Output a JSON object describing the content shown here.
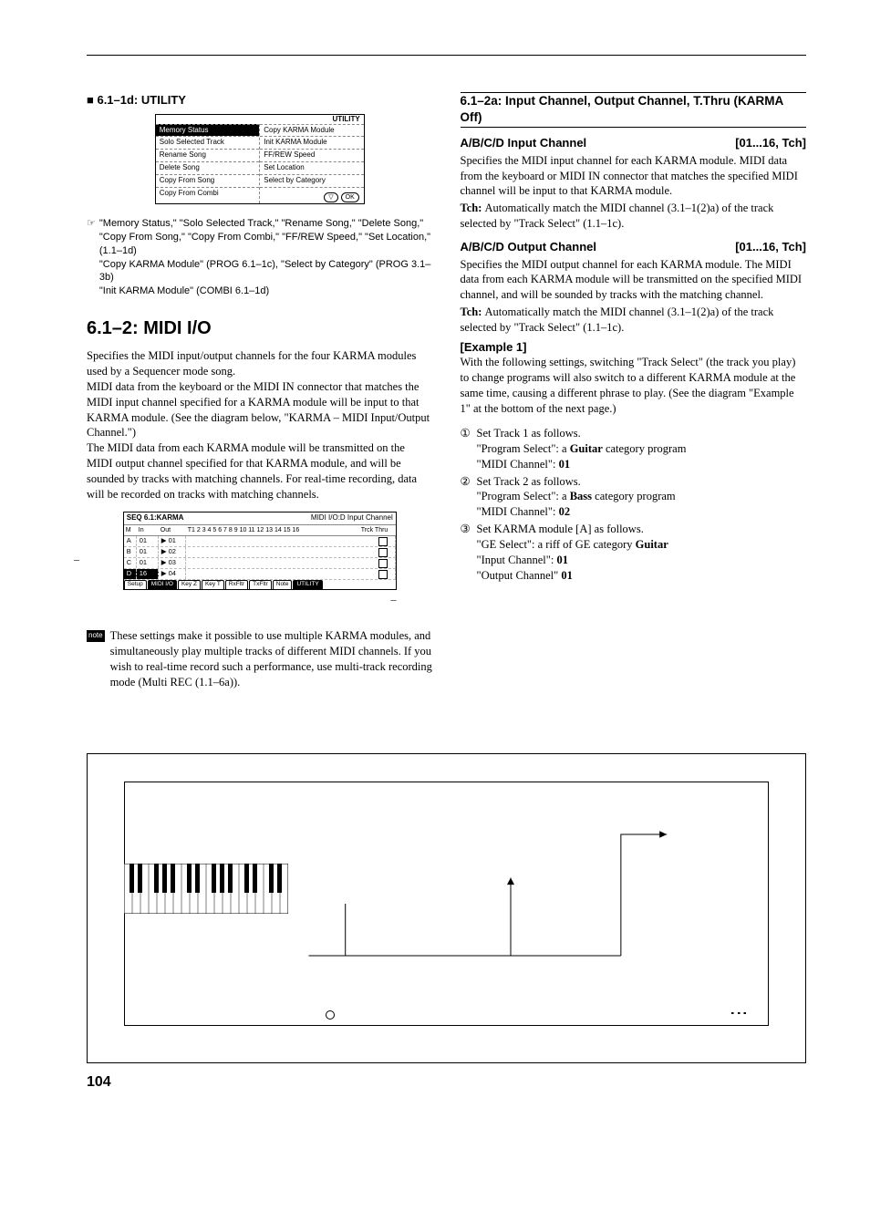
{
  "page_number": "104",
  "left": {
    "utility_title": "■ 6.1–1d: UTILITY",
    "utility": {
      "header": "UTILITY",
      "col1": [
        "Memory Status",
        "Solo Selected Track",
        "Rename Song",
        "Delete Song",
        "Copy From Song",
        "Copy From Combi"
      ],
      "col2": [
        "Copy KARMA Module",
        "Init KARMA Module",
        "FF/REW Speed",
        "Set Location",
        "Select by Category"
      ],
      "ok": "OK"
    },
    "pointer_sym": "☞",
    "pointer_lines": [
      "\"Memory Status,\" \"Solo Selected Track,\" \"Rename Song,\" \"Delete Song,\" \"Copy From Song,\" \"Copy From Combi,\" \"FF/REW Speed,\" \"Set Location,\" (1.1–1d)",
      "\"Copy KARMA Module\" (PROG 6.1–1c), \"Select by Category\" (PROG 3.1–3b)",
      "\"Init KARMA Module\" (COMBI 6.1–1d)"
    ],
    "h2": "6.1–2: MIDI I/O",
    "intro": "Specifies the MIDI input/output channels for the four KARMA modules used by a Sequencer mode song.\nMIDI data from the keyboard or the MIDI IN connector that matches the MIDI input channel specified for a KARMA module will be input to that KARMA module. (See the diagram below, \"KARMA – MIDI Input/Output Channel.\")\nThe MIDI data from each KARMA module will be transmitted on the MIDI output channel specified for that KARMA module, and will be sounded by tracks with matching channels. For real-time recording, data will be recorded on tracks with matching channels.",
    "screenshot": {
      "title_left": "SEQ 6.1:KARMA",
      "title_right": "MIDI I/O:D Input Channel",
      "cols": [
        "M",
        "In",
        "Out",
        "T1 2 3 4 5 6 7 8 9 10 11 12 13 14 15 16",
        "Trck Thru"
      ],
      "rows": [
        {
          "m": "A",
          "in": "01",
          "out": "▶ 01"
        },
        {
          "m": "B",
          "in": "01",
          "out": "▶ 02"
        },
        {
          "m": "C",
          "in": "01",
          "out": "▶ 03"
        },
        {
          "m": "D",
          "in": "16",
          "out": "▶ 04",
          "dark": true
        }
      ],
      "tabs": [
        "Setup",
        "MIDI I/O",
        "Key Z",
        "Key T",
        "RxFltr",
        "TxFltr",
        "Note",
        "UTILITY"
      ]
    },
    "note_badge": "note",
    "note_text": "These settings make it possible to use multiple KARMA modules, and simultaneously play multiple tracks of different MIDI channels. If you wish to real-time record such a performance, use multi-track recording mode (Multi REC (1.1–6a))."
  },
  "right": {
    "section_title": "6.1–2a: Input Channel, Output Channel, T.Thru (KARMA Off)",
    "input": {
      "label": "A/B/C/D Input Channel",
      "range": "[01...16, Tch]",
      "body": "Specifies the MIDI input channel for each KARMA module. MIDI data from the keyboard or MIDI IN connector that matches the specified MIDI channel will be input to that KARMA module.",
      "tch": "Tch: ",
      "tch_body": "Automatically match the MIDI channel (3.1–1(2)a) of the track selected by \"Track Select\" (1.1–1c)."
    },
    "output": {
      "label": "A/B/C/D Output Channel",
      "range": "[01...16, Tch]",
      "body": "Specifies the MIDI output channel for each KARMA module. The MIDI data from each KARMA module will be transmitted on the specified MIDI channel, and will be sounded by tracks with the matching channel.",
      "tch": "Tch: ",
      "tch_body": "Automatically match the MIDI channel (3.1–1(2)a) of the track selected by \"Track Select\" (1.1–1c)."
    },
    "example_label": "[Example 1]",
    "example_intro": "With the following settings, switching \"Track Select\" (the track you play) to change programs will also switch to a different KARMA module at the same time, causing a different phrase to play. (See the diagram \"Example 1\" at the bottom of the next page.)",
    "steps": [
      {
        "lead": "Set Track 1 as follows.",
        "lines": [
          "\"Program Select\": a Guitar category program",
          "\"MIDI Channel\": 01"
        ],
        "bold": [
          "Guitar",
          "01"
        ]
      },
      {
        "lead": "Set Track 2 as follows.",
        "lines": [
          "\"Program Select\": a Bass category program",
          "\"MIDI Channel\": 02"
        ],
        "bold": [
          "Bass",
          "02"
        ]
      },
      {
        "lead": "Set KARMA module [A] as follows.",
        "lines": [
          "\"GE Select\": a riff of GE category Guitar",
          "\"Input Channel\": 01",
          "\"Output Channel\" 01"
        ],
        "bold": [
          "Guitar",
          "01",
          "01"
        ]
      }
    ]
  }
}
